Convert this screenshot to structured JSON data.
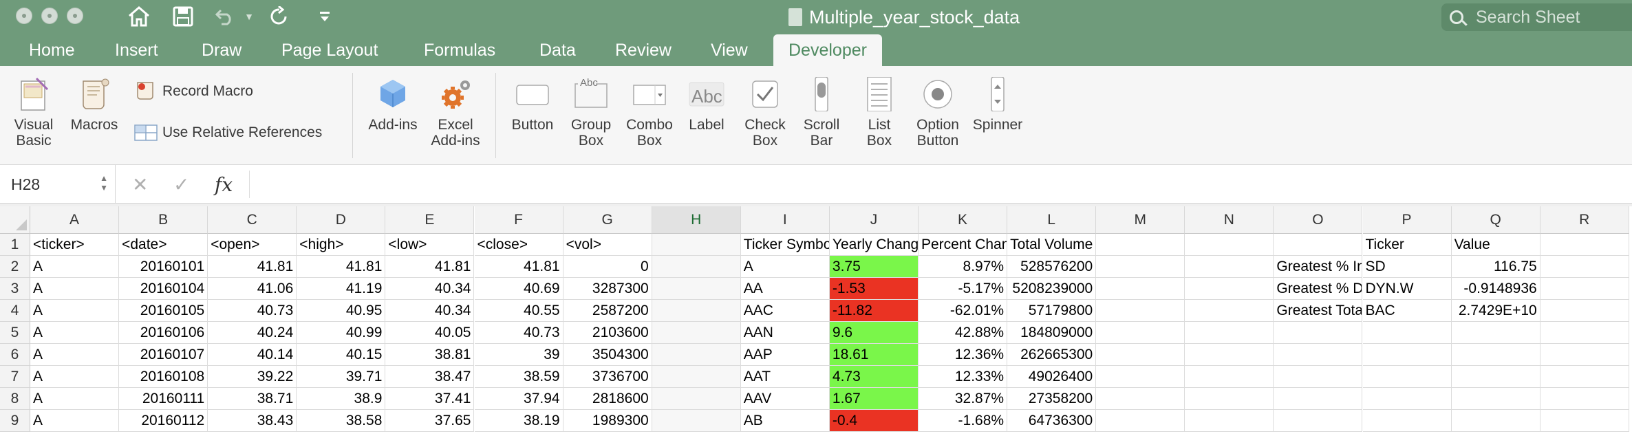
{
  "window": {
    "title": "Multiple_year_stock_data",
    "search_placeholder": "Search Sheet"
  },
  "tabs": [
    "Home",
    "Insert",
    "Draw",
    "Page Layout",
    "Formulas",
    "Data",
    "Review",
    "View",
    "Developer"
  ],
  "active_tab": "Developer",
  "ribbon": {
    "visual_basic": "Visual\nBasic",
    "macros": "Macros",
    "record_macro": "Record Macro",
    "use_relative": "Use Relative References",
    "add_ins": "Add-ins",
    "excel_add_ins": "Excel\nAdd-ins",
    "button": "Button",
    "group_box": "Group\nBox",
    "combo_box": "Combo\nBox",
    "label": "Label",
    "check_box": "Check\nBox",
    "scroll_bar": "Scroll\nBar",
    "list_box": "List\nBox",
    "option_button": "Option\nButton",
    "spinner": "Spinner",
    "label_icon_text": "Abc",
    "group_icon_text": "Abc"
  },
  "formula_bar": {
    "name_box": "H28",
    "fx": "fx",
    "formula": ""
  },
  "columns": [
    "A",
    "B",
    "C",
    "D",
    "E",
    "F",
    "G",
    "H",
    "I",
    "J",
    "K",
    "L",
    "M",
    "N",
    "O",
    "P",
    "Q",
    "R"
  ],
  "rows": [
    [
      "1",
      "<ticker>",
      "<date>",
      "<open>",
      "<high>",
      "<low>",
      "<close>",
      "<vol>",
      "",
      "Ticker Symbol",
      "Yearly Change",
      "Percent Change",
      "Total Volume",
      "",
      "",
      "",
      "Ticker",
      "Value",
      ""
    ],
    [
      "2",
      "A",
      "20160101",
      "41.81",
      "41.81",
      "41.81",
      "41.81",
      "0",
      "",
      "A",
      "3.75",
      "8.97%",
      "528576200",
      "",
      "",
      "Greatest % Increase",
      "SD",
      "116.75",
      ""
    ],
    [
      "3",
      "A",
      "20160104",
      "41.06",
      "41.19",
      "40.34",
      "40.69",
      "3287300",
      "",
      "AA",
      "-1.53",
      "-5.17%",
      "5208239000",
      "",
      "",
      "Greatest % Decrease",
      "DYN.W",
      "-0.9148936",
      ""
    ],
    [
      "4",
      "A",
      "20160105",
      "40.73",
      "40.95",
      "40.34",
      "40.55",
      "2587200",
      "",
      "AAC",
      "-11.82",
      "-62.01%",
      "57179800",
      "",
      "",
      "Greatest Total Volume",
      "BAC",
      "2.7429E+10",
      ""
    ],
    [
      "5",
      "A",
      "20160106",
      "40.24",
      "40.99",
      "40.05",
      "40.73",
      "2103600",
      "",
      "AAN",
      "9.6",
      "42.88%",
      "184809000",
      "",
      "",
      "",
      "",
      "",
      ""
    ],
    [
      "6",
      "A",
      "20160107",
      "40.14",
      "40.15",
      "38.81",
      "39",
      "3504300",
      "",
      "AAP",
      "18.61",
      "12.36%",
      "262665300",
      "",
      "",
      "",
      "",
      "",
      ""
    ],
    [
      "7",
      "A",
      "20160108",
      "39.22",
      "39.71",
      "38.47",
      "38.59",
      "3736700",
      "",
      "AAT",
      "4.73",
      "12.33%",
      "49026400",
      "",
      "",
      "",
      "",
      "",
      ""
    ],
    [
      "8",
      "A",
      "20160111",
      "38.71",
      "38.9",
      "37.41",
      "37.94",
      "2818600",
      "",
      "AAV",
      "1.67",
      "32.87%",
      "27358200",
      "",
      "",
      "",
      "",
      "",
      ""
    ],
    [
      "9",
      "A",
      "20160112",
      "38.43",
      "38.58",
      "37.65",
      "38.19",
      "1989300",
      "",
      "AB",
      "-0.4",
      "-1.68%",
      "64736300",
      "",
      "",
      "",
      "",
      "",
      ""
    ]
  ],
  "colors": {
    "titlebar": "#6f9b7b",
    "positive": "#7af64a",
    "negative": "#ea3323"
  }
}
